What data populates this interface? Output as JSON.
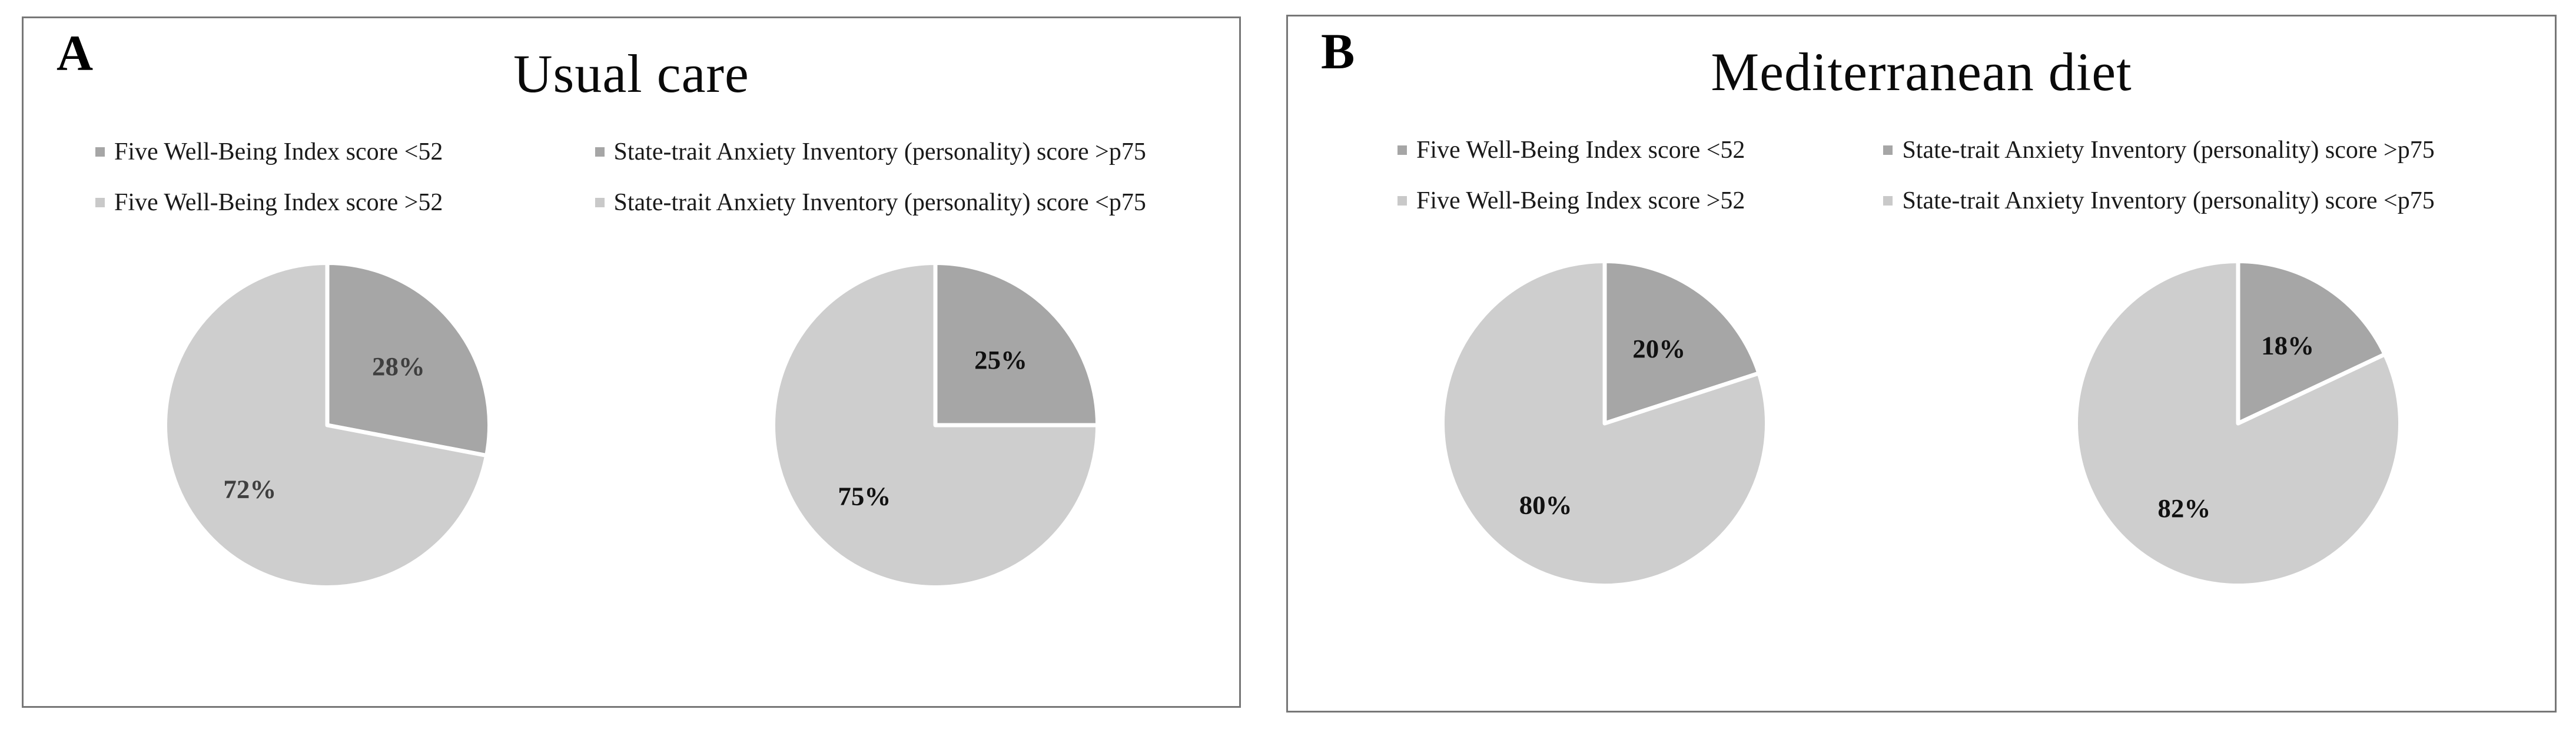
{
  "page": {
    "background": "#ffffff",
    "border_color": "#777777"
  },
  "colors": {
    "slice_dark": "#a6a6a6",
    "slice_light": "#cecece",
    "separator": "#ffffff"
  },
  "panels": [
    {
      "corner_label": "A",
      "title": "Usual care",
      "legend": [
        {
          "label": "Five Well-Being Index score <52",
          "color": "#a6a6a6"
        },
        {
          "label": "Five Well-Being Index score >52",
          "color": "#c9c9c9"
        },
        {
          "label": "State-trait Anxiety Inventory (personality) score >p75",
          "color": "#a6a6a6"
        },
        {
          "label": "State-trait Anxiety Inventory (personality) score <p75",
          "color": "#c9c9c9"
        }
      ]
    },
    {
      "corner_label": "B",
      "title": "Mediterranean diet",
      "legend": [
        {
          "label": "Five Well-Being Index score <52",
          "color": "#a6a6a6"
        },
        {
          "label": "Five Well-Being Index score >52",
          "color": "#c9c9c9"
        },
        {
          "label": "State-trait Anxiety Inventory (personality) score >p75",
          "color": "#a6a6a6"
        },
        {
          "label": "State-trait Anxiety Inventory (personality) score <p75",
          "color": "#c9c9c9"
        }
      ]
    }
  ],
  "chart_data": [
    {
      "type": "pie",
      "panel": "A",
      "title": "Usual care",
      "legend_position": "top",
      "start_angle_deg": 0,
      "direction": "clockwise",
      "value_label_color": "#3f3f3f",
      "slices": [
        {
          "label": "Five Well-Being Index score <52",
          "value": 28,
          "value_label": "28%",
          "color": "#a6a6a6"
        },
        {
          "label": "Five Well-Being Index score >52",
          "value": 72,
          "value_label": "72%",
          "color": "#cecece"
        }
      ]
    },
    {
      "type": "pie",
      "panel": "A",
      "title": "Usual care",
      "legend_position": "top",
      "start_angle_deg": 0,
      "direction": "clockwise",
      "value_label_color": "#111111",
      "slices": [
        {
          "label": "State-trait Anxiety Inventory (personality) score >p75",
          "value": 25,
          "value_label": "25%",
          "color": "#a6a6a6"
        },
        {
          "label": "State-trait Anxiety Inventory (personality) score <p75",
          "value": 75,
          "value_label": "75%",
          "color": "#cecece"
        }
      ]
    },
    {
      "type": "pie",
      "panel": "B",
      "title": "Mediterranean diet",
      "legend_position": "top",
      "start_angle_deg": 0,
      "direction": "clockwise",
      "value_label_color": "#111111",
      "slices": [
        {
          "label": "Five Well-Being Index score <52",
          "value": 20,
          "value_label": "20%",
          "color": "#a6a6a6"
        },
        {
          "label": "Five Well-Being Index score >52",
          "value": 80,
          "value_label": "80%",
          "color": "#cecece"
        }
      ]
    },
    {
      "type": "pie",
      "panel": "B",
      "title": "Mediterranean diet",
      "legend_position": "top",
      "start_angle_deg": 0,
      "direction": "clockwise",
      "value_label_color": "#111111",
      "slices": [
        {
          "label": "State-trait Anxiety Inventory (personality) score >p75",
          "value": 18,
          "value_label": "18%",
          "color": "#a6a6a6"
        },
        {
          "label": "State-trait Anxiety Inventory (personality) score <p75",
          "value": 82,
          "value_label": "82%",
          "color": "#cecece"
        }
      ]
    }
  ]
}
